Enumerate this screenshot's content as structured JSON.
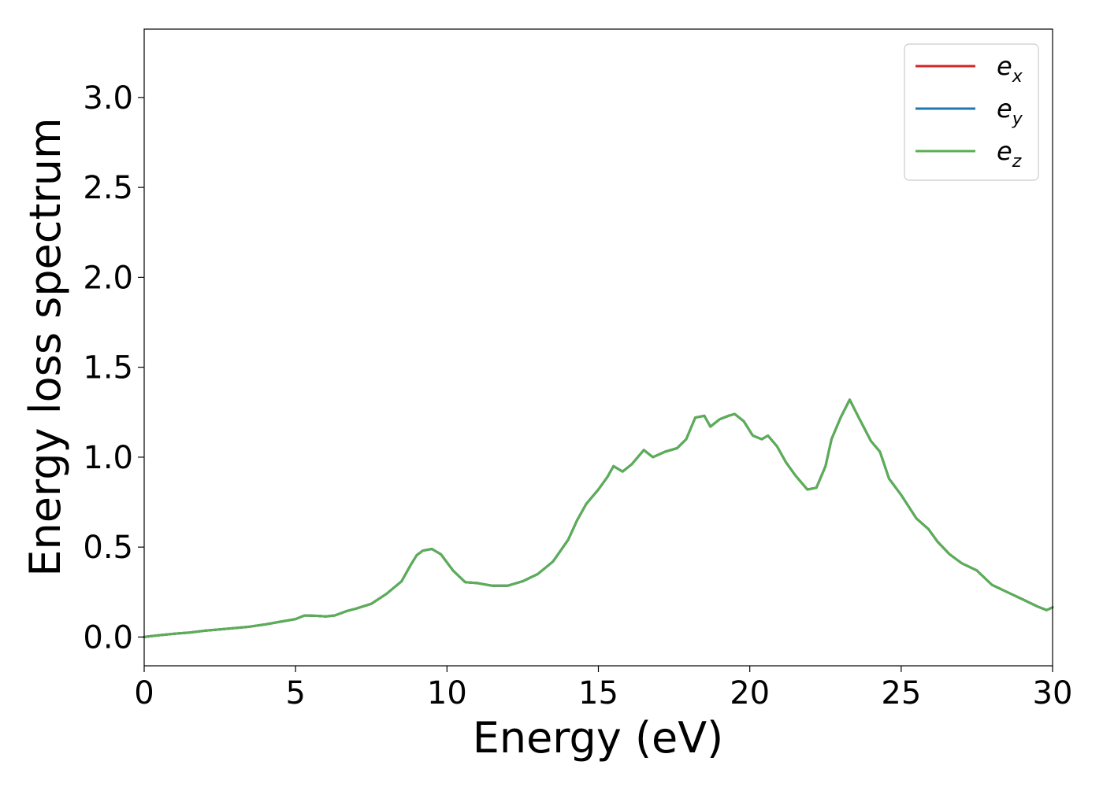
{
  "chart_data": {
    "type": "line",
    "xlabel": "Energy (eV)",
    "ylabel": "Energy loss spectrum",
    "xlim": [
      0,
      30
    ],
    "ylim": [
      -0.16,
      3.38
    ],
    "xticks": [
      0,
      5,
      10,
      15,
      20,
      25,
      30
    ],
    "xtick_labels": [
      "0",
      "5",
      "10",
      "15",
      "20",
      "25",
      "30"
    ],
    "yticks": [
      0.0,
      0.5,
      1.0,
      1.5,
      2.0,
      2.5,
      3.0
    ],
    "ytick_labels": [
      "0.0",
      "0.5",
      "1.0",
      "1.5",
      "2.0",
      "2.5",
      "3.0"
    ],
    "grid": false,
    "legend_position": "top-right",
    "x": [
      0,
      0.5,
      1,
      1.5,
      2,
      2.5,
      3,
      3.5,
      4,
      4.5,
      5,
      5.3,
      5.7,
      6,
      6.3,
      6.7,
      7,
      7.5,
      8,
      8.5,
      8.8,
      9,
      9.2,
      9.5,
      9.8,
      10.2,
      10.6,
      11,
      11.5,
      12,
      12.5,
      13,
      13.5,
      14,
      14.3,
      14.6,
      15,
      15.3,
      15.5,
      15.8,
      16.1,
      16.5,
      16.8,
      17.2,
      17.6,
      17.9,
      18.2,
      18.5,
      18.7,
      19,
      19.3,
      19.5,
      19.8,
      20.1,
      20.4,
      20.6,
      20.9,
      21.2,
      21.5,
      21.9,
      22.2,
      22.5,
      22.7,
      23,
      23.3,
      23.6,
      24,
      24.3,
      24.6,
      25,
      25.5,
      25.9,
      26.2,
      26.6,
      27,
      27.5,
      28,
      28.5,
      29,
      29.5,
      29.8,
      30
    ],
    "series": [
      {
        "name": "e_x",
        "legend_main": "e",
        "legend_sub": "x",
        "color": "#d62728",
        "values": [
          0.0,
          0.01,
          0.018,
          0.025,
          0.035,
          0.042,
          0.05,
          0.058,
          0.07,
          0.085,
          0.1,
          0.12,
          0.118,
          0.115,
          0.12,
          0.145,
          0.158,
          0.185,
          0.24,
          0.31,
          0.4,
          0.455,
          0.48,
          0.49,
          0.46,
          0.37,
          0.305,
          0.3,
          0.285,
          0.285,
          0.31,
          0.35,
          0.42,
          0.54,
          0.65,
          0.74,
          0.82,
          0.89,
          0.95,
          0.92,
          0.96,
          1.04,
          1.0,
          1.03,
          1.05,
          1.1,
          1.22,
          1.23,
          1.17,
          1.21,
          1.23,
          1.24,
          1.2,
          1.12,
          1.1,
          1.12,
          1.06,
          0.97,
          0.9,
          0.82,
          0.83,
          0.95,
          1.1,
          1.22,
          1.32,
          1.22,
          1.09,
          1.03,
          0.88,
          0.79,
          0.66,
          0.6,
          0.53,
          0.46,
          0.41,
          0.37,
          0.29,
          0.25,
          0.21,
          0.17,
          0.15,
          0.165
        ]
      },
      {
        "name": "e_y",
        "legend_main": "e",
        "legend_sub": "y",
        "color": "#1f77b4",
        "values": [
          0.0,
          0.01,
          0.018,
          0.025,
          0.035,
          0.042,
          0.05,
          0.058,
          0.07,
          0.085,
          0.1,
          0.12,
          0.118,
          0.115,
          0.12,
          0.145,
          0.158,
          0.185,
          0.24,
          0.31,
          0.4,
          0.455,
          0.48,
          0.49,
          0.46,
          0.37,
          0.305,
          0.3,
          0.285,
          0.285,
          0.31,
          0.35,
          0.42,
          0.54,
          0.65,
          0.74,
          0.82,
          0.89,
          0.95,
          0.92,
          0.96,
          1.04,
          1.0,
          1.03,
          1.05,
          1.1,
          1.22,
          1.23,
          1.17,
          1.21,
          1.23,
          1.24,
          1.2,
          1.12,
          1.1,
          1.12,
          1.06,
          0.97,
          0.9,
          0.82,
          0.83,
          0.95,
          1.1,
          1.22,
          1.32,
          1.22,
          1.09,
          1.03,
          0.88,
          0.79,
          0.66,
          0.6,
          0.53,
          0.46,
          0.41,
          0.37,
          0.29,
          0.25,
          0.21,
          0.17,
          0.15,
          0.165
        ]
      },
      {
        "name": "e_z",
        "legend_main": "e",
        "legend_sub": "z",
        "color": "#5aaf55",
        "values": [
          0.0,
          0.01,
          0.018,
          0.025,
          0.035,
          0.042,
          0.05,
          0.058,
          0.07,
          0.085,
          0.1,
          0.12,
          0.118,
          0.115,
          0.12,
          0.145,
          0.158,
          0.185,
          0.24,
          0.31,
          0.4,
          0.455,
          0.48,
          0.49,
          0.46,
          0.37,
          0.305,
          0.3,
          0.285,
          0.285,
          0.31,
          0.35,
          0.42,
          0.54,
          0.65,
          0.74,
          0.82,
          0.89,
          0.95,
          0.92,
          0.96,
          1.04,
          1.0,
          1.03,
          1.05,
          1.1,
          1.22,
          1.23,
          1.17,
          1.21,
          1.23,
          1.24,
          1.2,
          1.12,
          1.1,
          1.12,
          1.06,
          0.97,
          0.9,
          0.82,
          0.83,
          0.95,
          1.1,
          1.22,
          1.32,
          1.22,
          1.09,
          1.03,
          0.88,
          0.79,
          0.66,
          0.6,
          0.53,
          0.46,
          0.41,
          0.37,
          0.29,
          0.25,
          0.21,
          0.17,
          0.15,
          0.165
        ]
      }
    ]
  }
}
